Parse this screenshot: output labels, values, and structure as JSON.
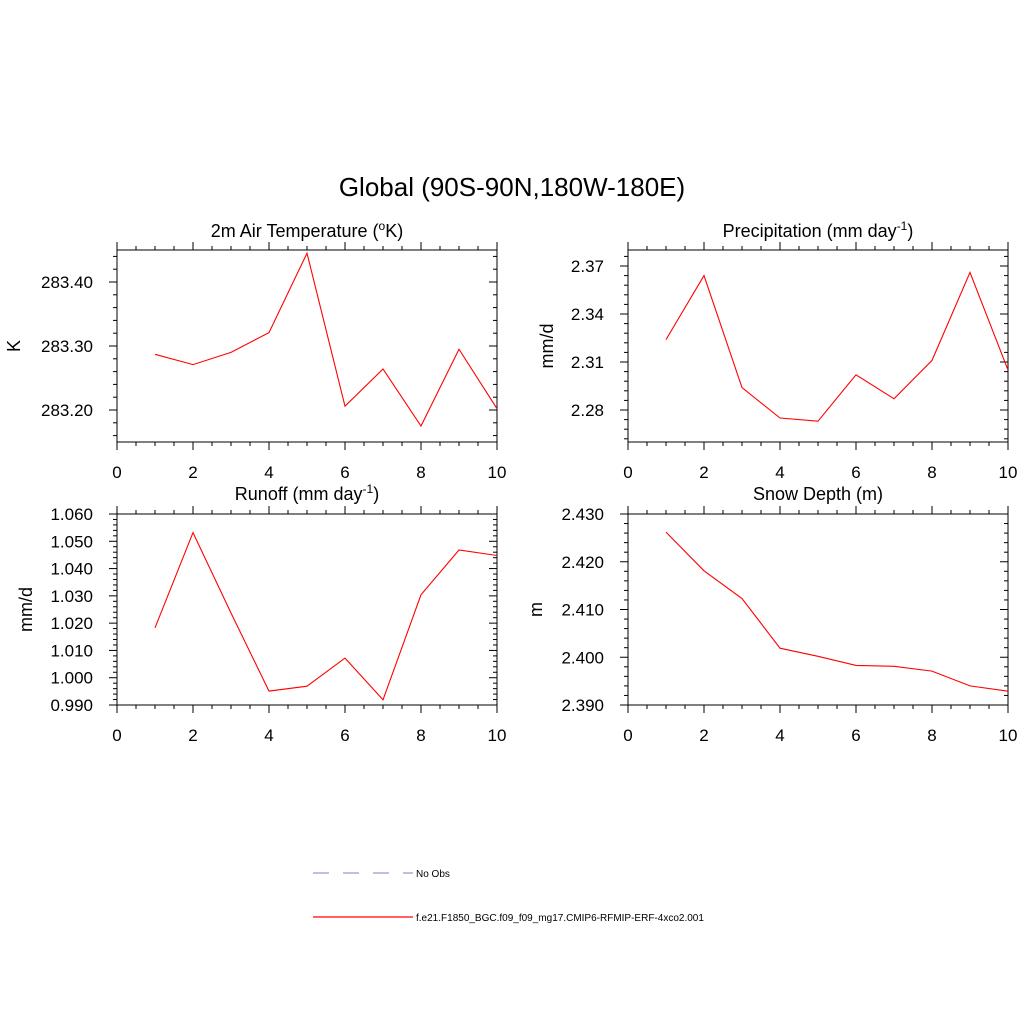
{
  "main_title": "Global (90S-90N,180W-180E)",
  "colors": {
    "series": "#ff0000",
    "obs": "#9a9ad8",
    "axis": "#000000"
  },
  "chart_data": [
    {
      "id": "tas",
      "type": "line",
      "title": "2m Air Temperature (",
      "title_sup": "o",
      "title_after": "K)",
      "ylabel": "K",
      "xlim": [
        0,
        10
      ],
      "ylim": [
        283.15,
        283.45
      ],
      "xticks": [
        0,
        2,
        4,
        6,
        8,
        10
      ],
      "xticklabels": [
        "0",
        "2",
        "4",
        "6",
        "8",
        "10"
      ],
      "yticks": [
        283.2,
        283.3,
        283.4
      ],
      "yticklabels": [
        "283.20",
        "283.30",
        "283.40"
      ],
      "x": [
        1,
        2,
        3,
        4,
        5,
        6,
        7,
        8,
        9,
        10
      ],
      "series": [
        {
          "values": [
            283.287,
            283.271,
            283.29,
            283.321,
            283.445,
            283.206,
            283.264,
            283.175,
            283.295,
            283.202
          ]
        }
      ]
    },
    {
      "id": "pr",
      "type": "line",
      "title": "Precipitation (mm day",
      "title_sup": "-1",
      "title_after": ")",
      "ylabel": "mm/d",
      "xlim": [
        0,
        10
      ],
      "ylim": [
        2.26,
        2.38
      ],
      "xticks": [
        0,
        2,
        4,
        6,
        8,
        10
      ],
      "xticklabels": [
        "0",
        "2",
        "4",
        "6",
        "8",
        "10"
      ],
      "yticks": [
        2.28,
        2.31,
        2.34,
        2.37
      ],
      "yticklabels": [
        "2.28",
        "2.31",
        "2.34",
        "2.37"
      ],
      "x": [
        1,
        2,
        3,
        4,
        5,
        6,
        7,
        8,
        9,
        10
      ],
      "series": [
        {
          "values": [
            2.324,
            2.364,
            2.294,
            2.275,
            2.273,
            2.302,
            2.287,
            2.311,
            2.366,
            2.305
          ]
        }
      ]
    },
    {
      "id": "runoff",
      "type": "line",
      "title": "Runoff (mm day",
      "title_sup": "-1",
      "title_after": ")",
      "ylabel": "mm/d",
      "xlim": [
        0,
        10
      ],
      "ylim": [
        0.99,
        1.06
      ],
      "xticks": [
        0,
        2,
        4,
        6,
        8,
        10
      ],
      "xticklabels": [
        "0",
        "2",
        "4",
        "6",
        "8",
        "10"
      ],
      "yticks": [
        0.99,
        1.0,
        1.01,
        1.02,
        1.03,
        1.04,
        1.05,
        1.06
      ],
      "yticklabels": [
        "0.990",
        "1.000",
        "1.010",
        "1.020",
        "1.030",
        "1.040",
        "1.050",
        "1.060"
      ],
      "x": [
        1,
        2,
        3,
        4,
        5,
        6,
        7,
        8,
        9,
        10
      ],
      "series": [
        {
          "values": [
            1.0183,
            1.0532,
            1.0237,
            0.9951,
            0.9969,
            1.0072,
            0.9919,
            1.0304,
            1.0468,
            1.0448
          ]
        }
      ]
    },
    {
      "id": "snowdepth",
      "type": "line",
      "title": "Snow Depth (m)",
      "title_sup": "",
      "title_after": "",
      "ylabel": "m",
      "xlim": [
        0,
        10
      ],
      "ylim": [
        2.39,
        2.43
      ],
      "xticks": [
        0,
        2,
        4,
        6,
        8,
        10
      ],
      "xticklabels": [
        "0",
        "2",
        "4",
        "6",
        "8",
        "10"
      ],
      "yticks": [
        2.39,
        2.4,
        2.41,
        2.42,
        2.43
      ],
      "yticklabels": [
        "2.390",
        "2.400",
        "2.410",
        "2.420",
        "2.430"
      ],
      "x": [
        1,
        2,
        3,
        4,
        5,
        6,
        7,
        8,
        9,
        10
      ],
      "series": [
        {
          "values": [
            2.4262,
            2.4181,
            2.4123,
            2.4019,
            2.4002,
            2.3983,
            2.3981,
            2.3971,
            2.394,
            2.3929
          ]
        }
      ]
    }
  ],
  "legend": [
    {
      "label": "No Obs",
      "style": "dashed",
      "color": "#9a9ad8"
    },
    {
      "label": "f.e21.F1850_BGC.f09_f09_mg17.CMIP6-RFMIP-ERF-4xco2.001",
      "style": "solid",
      "color": "#ff0000"
    }
  ]
}
